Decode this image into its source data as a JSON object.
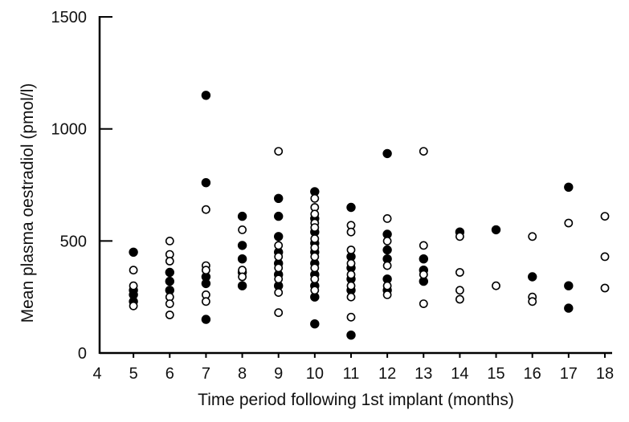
{
  "chart_data": {
    "type": "scatter",
    "xlabel": "Time period following 1st implant (months)",
    "ylabel": "Mean plasma oestradiol (pmol/l)",
    "xlim": [
      4,
      18
    ],
    "ylim": [
      0,
      1500
    ],
    "x_ticks": [
      "4",
      "5",
      "6",
      "7",
      "8",
      "9",
      "10",
      "11",
      "12",
      "13",
      "14",
      "15",
      "16",
      "17",
      "18"
    ],
    "y_ticks": [
      "0",
      "500",
      "1000",
      "1500"
    ],
    "grid": false,
    "legend": "none",
    "marker_color": "#000000",
    "series": [
      {
        "marker": "filled-circle",
        "points": [
          [
            5,
            450
          ],
          [
            5,
            280
          ],
          [
            5,
            260
          ],
          [
            5,
            230
          ],
          [
            6,
            360
          ],
          [
            6,
            320
          ],
          [
            6,
            280
          ],
          [
            7,
            1150
          ],
          [
            7,
            760
          ],
          [
            7,
            340
          ],
          [
            7,
            310
          ],
          [
            7,
            150
          ],
          [
            8,
            610
          ],
          [
            8,
            480
          ],
          [
            8,
            420
          ],
          [
            8,
            360
          ],
          [
            8,
            300
          ],
          [
            9,
            690
          ],
          [
            9,
            610
          ],
          [
            9,
            520
          ],
          [
            9,
            450
          ],
          [
            9,
            400
          ],
          [
            9,
            350
          ],
          [
            9,
            300
          ],
          [
            10,
            720
          ],
          [
            10,
            600
          ],
          [
            10,
            540
          ],
          [
            10,
            490
          ],
          [
            10,
            450
          ],
          [
            10,
            400
          ],
          [
            10,
            350
          ],
          [
            10,
            300
          ],
          [
            10,
            250
          ],
          [
            10,
            130
          ],
          [
            11,
            650
          ],
          [
            11,
            430
          ],
          [
            11,
            380
          ],
          [
            11,
            330
          ],
          [
            11,
            280
          ],
          [
            11,
            80
          ],
          [
            12,
            890
          ],
          [
            12,
            530
          ],
          [
            12,
            460
          ],
          [
            12,
            420
          ],
          [
            12,
            330
          ],
          [
            12,
            280
          ],
          [
            13,
            420
          ],
          [
            13,
            370
          ],
          [
            13,
            320
          ],
          [
            14,
            540
          ],
          [
            15,
            550
          ],
          [
            16,
            340
          ],
          [
            17,
            740
          ],
          [
            17,
            300
          ],
          [
            17,
            200
          ]
        ]
      },
      {
        "marker": "open-circle",
        "points": [
          [
            5,
            370
          ],
          [
            5,
            300
          ],
          [
            5,
            210
          ],
          [
            6,
            500
          ],
          [
            6,
            440
          ],
          [
            6,
            410
          ],
          [
            6,
            250
          ],
          [
            6,
            220
          ],
          [
            6,
            170
          ],
          [
            7,
            640
          ],
          [
            7,
            390
          ],
          [
            7,
            370
          ],
          [
            7,
            260
          ],
          [
            7,
            230
          ],
          [
            8,
            550
          ],
          [
            8,
            370
          ],
          [
            8,
            340
          ],
          [
            9,
            900
          ],
          [
            9,
            480
          ],
          [
            9,
            430
          ],
          [
            9,
            380
          ],
          [
            9,
            330
          ],
          [
            9,
            270
          ],
          [
            9,
            180
          ],
          [
            10,
            690
          ],
          [
            10,
            650
          ],
          [
            10,
            620
          ],
          [
            10,
            580
          ],
          [
            10,
            560
          ],
          [
            10,
            510
          ],
          [
            10,
            470
          ],
          [
            10,
            430
          ],
          [
            10,
            380
          ],
          [
            10,
            330
          ],
          [
            10,
            280
          ],
          [
            11,
            570
          ],
          [
            11,
            540
          ],
          [
            11,
            460
          ],
          [
            11,
            400
          ],
          [
            11,
            350
          ],
          [
            11,
            300
          ],
          [
            11,
            250
          ],
          [
            11,
            160
          ],
          [
            12,
            600
          ],
          [
            12,
            500
          ],
          [
            12,
            390
          ],
          [
            12,
            300
          ],
          [
            12,
            260
          ],
          [
            13,
            900
          ],
          [
            13,
            480
          ],
          [
            13,
            350
          ],
          [
            13,
            220
          ],
          [
            14,
            520
          ],
          [
            14,
            360
          ],
          [
            14,
            280
          ],
          [
            14,
            240
          ],
          [
            15,
            300
          ],
          [
            16,
            520
          ],
          [
            16,
            250
          ],
          [
            16,
            230
          ],
          [
            17,
            580
          ],
          [
            18,
            610
          ],
          [
            18,
            430
          ],
          [
            18,
            290
          ]
        ]
      }
    ]
  }
}
